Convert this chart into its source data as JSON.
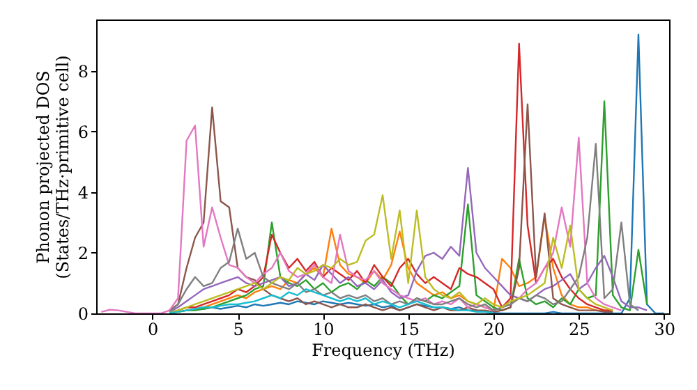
{
  "chart_data": {
    "type": "line",
    "xlabel": "Frequency (THz)",
    "ylabel": "Phonon projected DOS\n(States/THz·primitive cell)",
    "x": [
      -3,
      -2.5,
      -2,
      -1.5,
      -1,
      -0.5,
      0,
      0.5,
      1,
      1.5,
      2,
      2.5,
      3,
      3.5,
      4,
      4.5,
      5,
      5.5,
      6,
      6.5,
      7,
      7.5,
      8,
      8.5,
      9,
      9.5,
      10,
      10.5,
      11,
      11.5,
      12,
      12.5,
      13,
      13.5,
      14,
      14.5,
      15,
      15.5,
      16,
      16.5,
      17,
      17.5,
      18,
      18.5,
      19,
      19.5,
      20,
      20.5,
      21,
      21.5,
      22,
      22.5,
      23,
      23.5,
      24,
      24.5,
      25,
      25.5,
      26,
      26.5,
      27,
      27.5,
      28,
      28.5,
      29,
      29.5,
      30
    ],
    "series": [
      {
        "color": "#1f77b4",
        "values": [
          null,
          null,
          null,
          null,
          null,
          null,
          null,
          null,
          null,
          null,
          null,
          null,
          0.15,
          0.2,
          0.15,
          0.2,
          0.25,
          0.2,
          0.3,
          0.25,
          0.3,
          0.35,
          0.3,
          0.4,
          0.35,
          0.3,
          0.4,
          0.35,
          0.3,
          0.35,
          0.3,
          0.25,
          0.3,
          0.2,
          0.25,
          0.1,
          0.2,
          0.3,
          0.25,
          0.2,
          0.2,
          0.15,
          0.2,
          0.1,
          0.1,
          0.05,
          0.02,
          0,
          0,
          0,
          0,
          0,
          0,
          0.05,
          0,
          0,
          0,
          0,
          0,
          0,
          0,
          0,
          0.5,
          9.2,
          0.3,
          0,
          0
        ]
      },
      {
        "color": "#ff7f0e",
        "values": [
          null,
          null,
          null,
          null,
          null,
          null,
          null,
          null,
          0.02,
          0.05,
          0.1,
          0.15,
          0.2,
          0.3,
          0.4,
          0.5,
          0.6,
          0.5,
          0.7,
          0.8,
          0.9,
          0.8,
          1.1,
          1.0,
          1.3,
          1.5,
          1.2,
          2.8,
          1.6,
          1.3,
          1.2,
          1.0,
          1.4,
          1.1,
          1.6,
          2.7,
          1.5,
          1.0,
          0.8,
          0.6,
          0.7,
          0.5,
          0.6,
          0.4,
          0.3,
          0.2,
          0.1,
          1.8,
          1.5,
          0.9,
          1.0,
          1.2,
          3.2,
          1.5,
          0.6,
          0.3,
          0.2,
          0.2,
          0.1,
          0.1,
          0.1,
          null,
          null,
          null,
          null,
          null,
          null
        ]
      },
      {
        "color": "#2ca02c",
        "values": [
          null,
          null,
          null,
          null,
          null,
          null,
          null,
          null,
          0.02,
          0.05,
          0.1,
          0.1,
          0.15,
          0.2,
          0.3,
          0.4,
          0.5,
          0.6,
          0.8,
          0.9,
          3.0,
          1.2,
          1.0,
          0.9,
          1.1,
          0.8,
          1.0,
          0.7,
          0.9,
          1.0,
          0.8,
          1.1,
          0.9,
          1.2,
          1.0,
          0.6,
          0.3,
          0.5,
          0.4,
          0.6,
          0.5,
          0.7,
          0.9,
          3.6,
          0.6,
          0.4,
          0.2,
          0.1,
          0.2,
          1.8,
          0.5,
          0.3,
          0.4,
          0.2,
          0.5,
          0.3,
          0.8,
          0.5,
          0.6,
          7.0,
          0.6,
          0.2,
          0.1,
          2.1,
          0.3,
          null,
          null
        ]
      },
      {
        "color": "#d62728",
        "values": [
          null,
          null,
          null,
          null,
          null,
          null,
          null,
          null,
          0.02,
          0.1,
          0.2,
          0.2,
          0.3,
          0.4,
          0.5,
          0.6,
          0.8,
          0.7,
          0.9,
          1.2,
          2.6,
          2.0,
          1.5,
          1.8,
          1.4,
          1.7,
          1.2,
          1.5,
          1.3,
          1.1,
          1.4,
          1.0,
          1.6,
          1.2,
          0.9,
          1.5,
          1.8,
          1.3,
          1.0,
          1.2,
          1.0,
          0.8,
          1.5,
          1.3,
          1.2,
          1.0,
          0.8,
          0.2,
          0.5,
          8.9,
          2.9,
          1.0,
          1.5,
          1.8,
          1.2,
          0.8,
          0.5,
          0.3,
          0.2,
          0.1,
          0.1,
          null,
          null,
          null,
          null,
          null,
          null
        ]
      },
      {
        "color": "#9467bd",
        "values": [
          null,
          null,
          null,
          null,
          null,
          null,
          null,
          null,
          0.05,
          0.2,
          0.4,
          0.6,
          0.8,
          0.9,
          1.0,
          1.1,
          1.2,
          1.0,
          0.9,
          1.0,
          1.1,
          1.2,
          0.9,
          1.0,
          1.3,
          1.1,
          1.6,
          1.3,
          1.0,
          1.2,
          0.9,
          1.0,
          0.8,
          1.1,
          0.7,
          0.5,
          0.6,
          1.4,
          1.9,
          2.0,
          1.8,
          2.2,
          1.9,
          4.8,
          2.0,
          1.5,
          1.2,
          0.9,
          0.6,
          0.5,
          0.4,
          0.6,
          0.8,
          0.9,
          1.1,
          1.3,
          0.8,
          1.0,
          1.5,
          1.9,
          1.2,
          0.4,
          0.2,
          0.2,
          0.1,
          null,
          null
        ]
      },
      {
        "color": "#8c564b",
        "values": [
          null,
          null,
          null,
          null,
          null,
          null,
          null,
          null,
          0.1,
          0.3,
          1.5,
          2.5,
          3.0,
          6.8,
          3.7,
          3.5,
          1.5,
          1.2,
          1.1,
          0.8,
          0.6,
          0.5,
          0.4,
          0.5,
          0.3,
          0.4,
          0.3,
          0.2,
          0.3,
          0.2,
          0.2,
          0.3,
          0.2,
          0.1,
          0.2,
          0.1,
          0.2,
          0.3,
          0.2,
          0.1,
          0.2,
          0.1,
          0.1,
          0.2,
          0.1,
          0.1,
          0.05,
          0.1,
          0.2,
          1.5,
          6.9,
          1.2,
          3.3,
          0.5,
          0.3,
          0.2,
          0.1,
          0.1,
          0.1,
          0.05,
          0.05,
          null,
          null,
          null,
          null,
          null,
          null
        ]
      },
      {
        "color": "#e377c2",
        "values": [
          0.05,
          0.12,
          0.1,
          0.05,
          0,
          0,
          0,
          0,
          0.1,
          0.5,
          5.7,
          6.2,
          2.2,
          3.5,
          2.5,
          1.6,
          1.5,
          1.2,
          1.0,
          1.3,
          1.5,
          2.0,
          1.4,
          1.2,
          1.3,
          1.6,
          1.2,
          1.0,
          2.6,
          1.4,
          1.2,
          1.1,
          1.4,
          1.0,
          0.8,
          0.6,
          0.5,
          0.4,
          0.5,
          0.3,
          0.4,
          0.3,
          0.5,
          0.2,
          0.3,
          0.2,
          0.1,
          0.2,
          0.3,
          0.5,
          0.8,
          1.0,
          1.5,
          2.0,
          3.5,
          2.2,
          5.8,
          1.0,
          0.5,
          0.3,
          0.2,
          0.1,
          null,
          null,
          null,
          null,
          null
        ]
      },
      {
        "color": "#7f7f7f",
        "values": [
          null,
          null,
          null,
          null,
          null,
          null,
          null,
          null,
          0.05,
          0.3,
          0.8,
          1.2,
          0.9,
          1.0,
          1.5,
          1.7,
          2.8,
          1.8,
          2.0,
          1.2,
          1.0,
          0.9,
          0.8,
          1.0,
          0.7,
          0.8,
          0.6,
          0.7,
          0.5,
          0.6,
          0.5,
          0.6,
          0.4,
          0.5,
          0.3,
          0.4,
          0.3,
          0.5,
          0.4,
          0.3,
          0.3,
          0.4,
          0.5,
          0.3,
          0.2,
          0.3,
          0.1,
          0.2,
          0.3,
          0.5,
          0.4,
          0.6,
          0.5,
          0.3,
          0.4,
          0.8,
          1.2,
          2.5,
          5.6,
          0.5,
          0.8,
          3.0,
          0.3,
          0.1,
          null,
          null,
          null
        ]
      },
      {
        "color": "#bcbd22",
        "values": [
          null,
          null,
          null,
          null,
          null,
          null,
          null,
          null,
          0.02,
          0.1,
          0.2,
          0.3,
          0.4,
          0.5,
          0.6,
          0.7,
          0.8,
          0.9,
          1.0,
          0.8,
          1.0,
          1.2,
          1.1,
          1.5,
          1.3,
          1.4,
          1.6,
          1.5,
          1.8,
          1.6,
          1.7,
          2.4,
          2.6,
          3.9,
          1.8,
          3.4,
          1.0,
          3.4,
          1.2,
          0.8,
          0.6,
          0.5,
          0.7,
          0.4,
          0.3,
          0.5,
          0.3,
          0.2,
          0.4,
          0.5,
          0.6,
          0.8,
          1.0,
          2.5,
          1.5,
          2.9,
          0.8,
          0.5,
          0.3,
          0.2,
          0.1,
          null,
          null,
          null,
          null,
          null,
          null
        ]
      },
      {
        "color": "#17becf",
        "values": [
          null,
          null,
          null,
          null,
          null,
          null,
          null,
          null,
          0.02,
          0.05,
          0.1,
          0.15,
          0.2,
          0.2,
          0.25,
          0.3,
          0.3,
          0.35,
          0.4,
          0.5,
          0.6,
          0.5,
          0.7,
          0.6,
          0.8,
          0.7,
          0.6,
          0.5,
          0.4,
          0.5,
          0.4,
          0.5,
          0.3,
          0.4,
          0.3,
          0.2,
          0.3,
          0.4,
          0.3,
          0.2,
          0.2,
          0.15,
          0.1,
          0.1,
          0.05,
          0.05,
          0.02,
          null,
          null,
          null,
          null,
          null,
          null,
          null,
          null,
          null,
          null,
          null,
          null,
          null,
          null,
          null,
          null,
          null,
          null,
          null,
          null
        ]
      }
    ],
    "xlim": [
      -3.3,
      30.3
    ],
    "xticks": [
      0,
      5,
      10,
      15,
      20,
      25,
      30
    ],
    "ylim": [
      0,
      9.7
    ],
    "yticks": [
      0,
      2,
      4,
      6,
      8
    ],
    "grid": false,
    "legend": false,
    "marker": "none",
    "line_style": "solid"
  }
}
